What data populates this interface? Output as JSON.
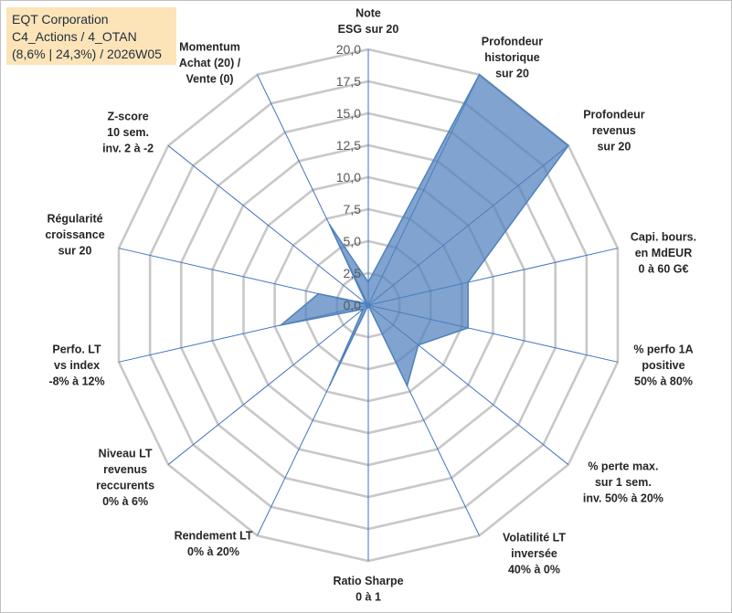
{
  "title_lines": [
    "EQT Corporation",
    "C4_Actions / 4_OTAN",
    "(8,6% | 24,3%) / 2026W05"
  ],
  "colors": {
    "fill": "#4f81bd",
    "fill_opacity": 0.72,
    "stroke": "#4f81bd",
    "grid": "#c8c8c8",
    "spoke": "#4472c4",
    "title_bg": "#fce4b8"
  },
  "chart_data": {
    "type": "radar",
    "title": "",
    "rmin": 0,
    "rmax": 20,
    "tick_step": 2.5,
    "tick_labels": [
      "0,0",
      "2,5",
      "5,0",
      "7,5",
      "10,0",
      "12,5",
      "15,0",
      "17,5",
      "20,0"
    ],
    "gridlines": true,
    "axes": [
      {
        "label": [
          "Note",
          "ESG sur 20"
        ],
        "value": 1.8
      },
      {
        "label": [
          "Profondeur",
          "historique",
          "sur 20"
        ],
        "value": 20
      },
      {
        "label": [
          "Profondeur",
          "revenus",
          "sur 20"
        ],
        "value": 20
      },
      {
        "label": [
          "Capi. bours.",
          "en MdEUR",
          "0 à 60 G€"
        ],
        "value": 8
      },
      {
        "label": [
          "% perfo 1A",
          "positive",
          "50% à 80%"
        ],
        "value": 8
      },
      {
        "label": [
          "% perte max.",
          "sur 1 sem.",
          "inv. 50% à 20%"
        ],
        "value": 5
      },
      {
        "label": [
          "Volatilité LT",
          "inversée",
          "40% à 0%"
        ],
        "value": 7
      },
      {
        "label": [
          "Ratio Sharpe",
          "0 à 1"
        ],
        "value": 0
      },
      {
        "label": [
          "Rendement LT",
          "0% à 20%"
        ],
        "value": 7
      },
      {
        "label": [
          "Niveau LT",
          "revenus",
          "reccurents",
          "0% à 6%"
        ],
        "value": 0.5
      },
      {
        "label": [
          "Perfo. LT",
          "vs index",
          "-8% à 12%"
        ],
        "value": 7
      },
      {
        "label": [
          "Régularité",
          "croissance",
          "sur 20"
        ],
        "value": 4
      },
      {
        "label": [
          "Z-score",
          "10 sem.",
          "inv. 2 à -2"
        ],
        "value": 0.2
      },
      {
        "label": [
          "Momentum",
          "Achat (20) /",
          "Vente (0)"
        ],
        "value": 7
      }
    ]
  }
}
